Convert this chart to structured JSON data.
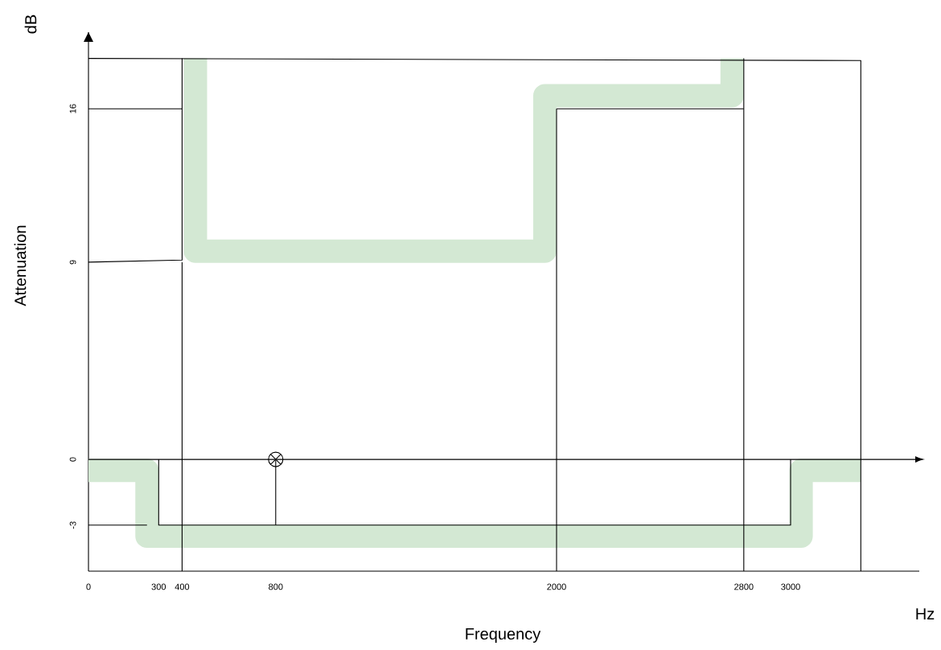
{
  "chart_data": {
    "type": "line",
    "xlabel": "Frequency",
    "ylabel": "Attenuation",
    "annotations": [
      "dB",
      "Hz"
    ],
    "xlim": [
      0,
      3550
    ],
    "ylim": [
      -5.1,
      19.5
    ],
    "xticks": [
      0,
      300,
      400,
      800,
      2000,
      2800,
      3000
    ],
    "yticks": [
      -3,
      0,
      9,
      16
    ],
    "grid": false,
    "marker": "none",
    "line_style": "solid",
    "series": [
      {
        "color": "#d3e8d3",
        "x": [
          0,
          250,
          250,
          3045,
          3045,
          3300
        ],
        "values": [
          -0.5,
          -0.5,
          -3.5,
          -3.5,
          -0.5,
          -0.5
        ]
      },
      {
        "color": "#d3e8d3",
        "x": [
          457,
          457,
          1950,
          1950,
          2750,
          2750
        ],
        "values": [
          18.3,
          9.5,
          9.5,
          16.6,
          16.6,
          18.3
        ]
      },
      {
        "color": "#000000",
        "x": [
          0,
          3300
        ],
        "values": [
          0,
          0
        ]
      },
      {
        "color": "#000000",
        "x": [
          300,
          300,
          3000,
          3000
        ],
        "values": [
          0,
          -3,
          -3,
          0
        ]
      },
      {
        "color": "#000000",
        "x": [
          0,
          250
        ],
        "values": [
          -3,
          -3
        ]
      },
      {
        "color": "#000000",
        "x": [
          0,
          400,
          400
        ],
        "values": [
          9,
          9.1,
          18.3
        ]
      },
      {
        "color": "#000000",
        "x": [
          0,
          3300,
          3300
        ],
        "values": [
          18.3,
          18.2,
          -5.1
        ]
      },
      {
        "color": "#000000",
        "x": [
          0,
          400
        ],
        "values": [
          16,
          16
        ]
      },
      {
        "color": "#000000",
        "x": [
          2000,
          2800
        ],
        "values": [
          16,
          16
        ]
      },
      {
        "color": "#000000",
        "x": [
          400,
          400
        ],
        "values": [
          -5.1,
          9
        ]
      },
      {
        "color": "#000000",
        "x": [
          2000,
          2000
        ],
        "values": [
          -5.1,
          16
        ]
      },
      {
        "color": "#000000",
        "x": [
          2800,
          2800
        ],
        "values": [
          -5.1,
          18.3
        ]
      },
      {
        "color": "#000000",
        "x": [
          800,
          800
        ],
        "values": [
          -3,
          0
        ]
      },
      {
        "type": "scatter",
        "marker": "cross",
        "color": "#000000",
        "x": [
          800
        ],
        "values": [
          0
        ]
      }
    ]
  }
}
